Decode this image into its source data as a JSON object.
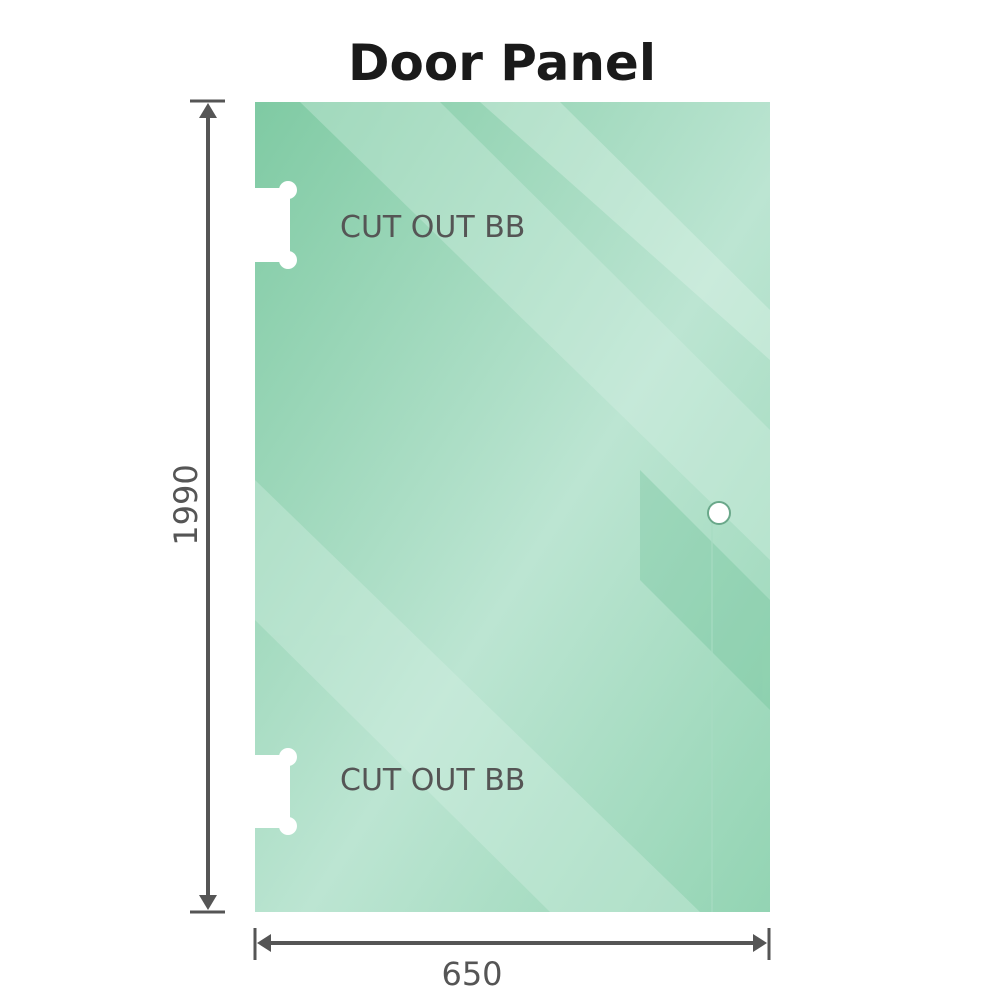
{
  "title": "Door Panel",
  "cutout_top_label": "CUT OUT BB",
  "cutout_bottom_label": "CUT OUT BB",
  "height_dimension": "1990",
  "width_dimension": "650",
  "colors": {
    "glass": "#8fd2b0",
    "glass_light": "#bde6d2",
    "dimension_line": "#555555"
  }
}
